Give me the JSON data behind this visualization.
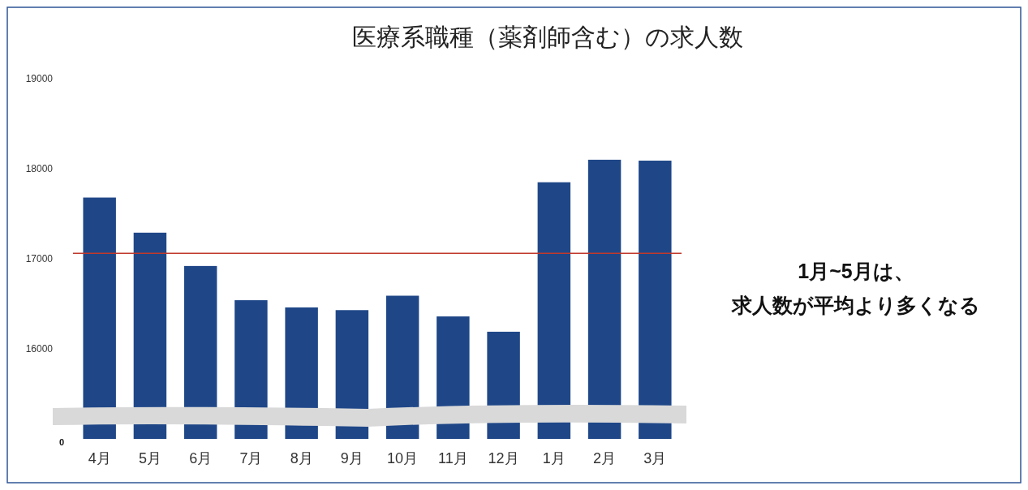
{
  "chart_data": {
    "type": "bar",
    "title": "医療系職種（薬剤師含む）の求人数",
    "categories": [
      "4月",
      "5月",
      "6月",
      "7月",
      "8月",
      "9月",
      "10月",
      "11月",
      "12月",
      "1月",
      "2月",
      "3月"
    ],
    "values": [
      17680,
      17290,
      16920,
      16540,
      16460,
      16430,
      16590,
      16360,
      16190,
      17850,
      18100,
      18090
    ],
    "color": "#1f4788",
    "ylim": [
      15000,
      19000
    ],
    "yticks": [
      16000,
      17000,
      18000,
      19000
    ],
    "grid": false,
    "ref_lines": [
      {
        "axis": "y",
        "value": 17060,
        "color": "#c0392b"
      }
    ],
    "annotations": [
      "0",
      "1月~5月は、",
      "求人数が平均より多くなる"
    ]
  }
}
